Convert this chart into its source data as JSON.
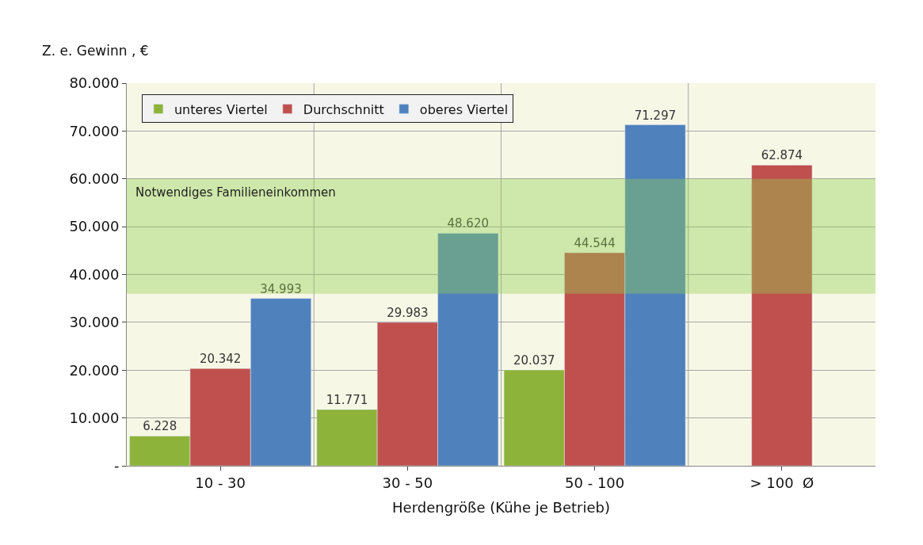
{
  "chart_data": {
    "type": "bar",
    "ylabel": "Z. e. Gewinn , €",
    "xlabel": "Herdengröße (Kühe je Betrieb)",
    "categories": [
      "10 - 30",
      "30 - 50",
      "50 - 100",
      "> 100  Ø"
    ],
    "series": [
      {
        "name": "unteres Viertel",
        "color": "#8db33a",
        "values": [
          6228,
          11771,
          20037,
          null
        ],
        "value_labels": [
          "6.228",
          "11.771",
          "20.037",
          null
        ]
      },
      {
        "name": "Durchschnitt",
        "color": "#c0504d",
        "values": [
          20342,
          29983,
          44544,
          62874
        ],
        "value_labels": [
          "20.342",
          "29.983",
          "44.544",
          "62.874"
        ]
      },
      {
        "name": "oberes Viertel",
        "color": "#4f81bd",
        "values": [
          34993,
          48620,
          71297,
          null
        ],
        "value_labels": [
          "34.993",
          "48.620",
          "71.297",
          null
        ]
      }
    ],
    "ylim": [
      0,
      80000
    ],
    "yticks": [
      {
        "value": 0,
        "label": "-"
      },
      {
        "value": 10000,
        "label": "10.000"
      },
      {
        "value": 20000,
        "label": "20.000"
      },
      {
        "value": 30000,
        "label": "30.000"
      },
      {
        "value": 40000,
        "label": "40.000"
      },
      {
        "value": 50000,
        "label": "50.000"
      },
      {
        "value": 60000,
        "label": "60.000"
      },
      {
        "value": 70000,
        "label": "70.000"
      },
      {
        "value": 80000,
        "label": "80.000"
      }
    ],
    "bands": [
      {
        "axis": "y",
        "from": 36000,
        "to": 60000,
        "label": "Notwendiges Familieneinkommen",
        "color": "#92d050"
      }
    ],
    "grid": true,
    "legend": "top left"
  }
}
